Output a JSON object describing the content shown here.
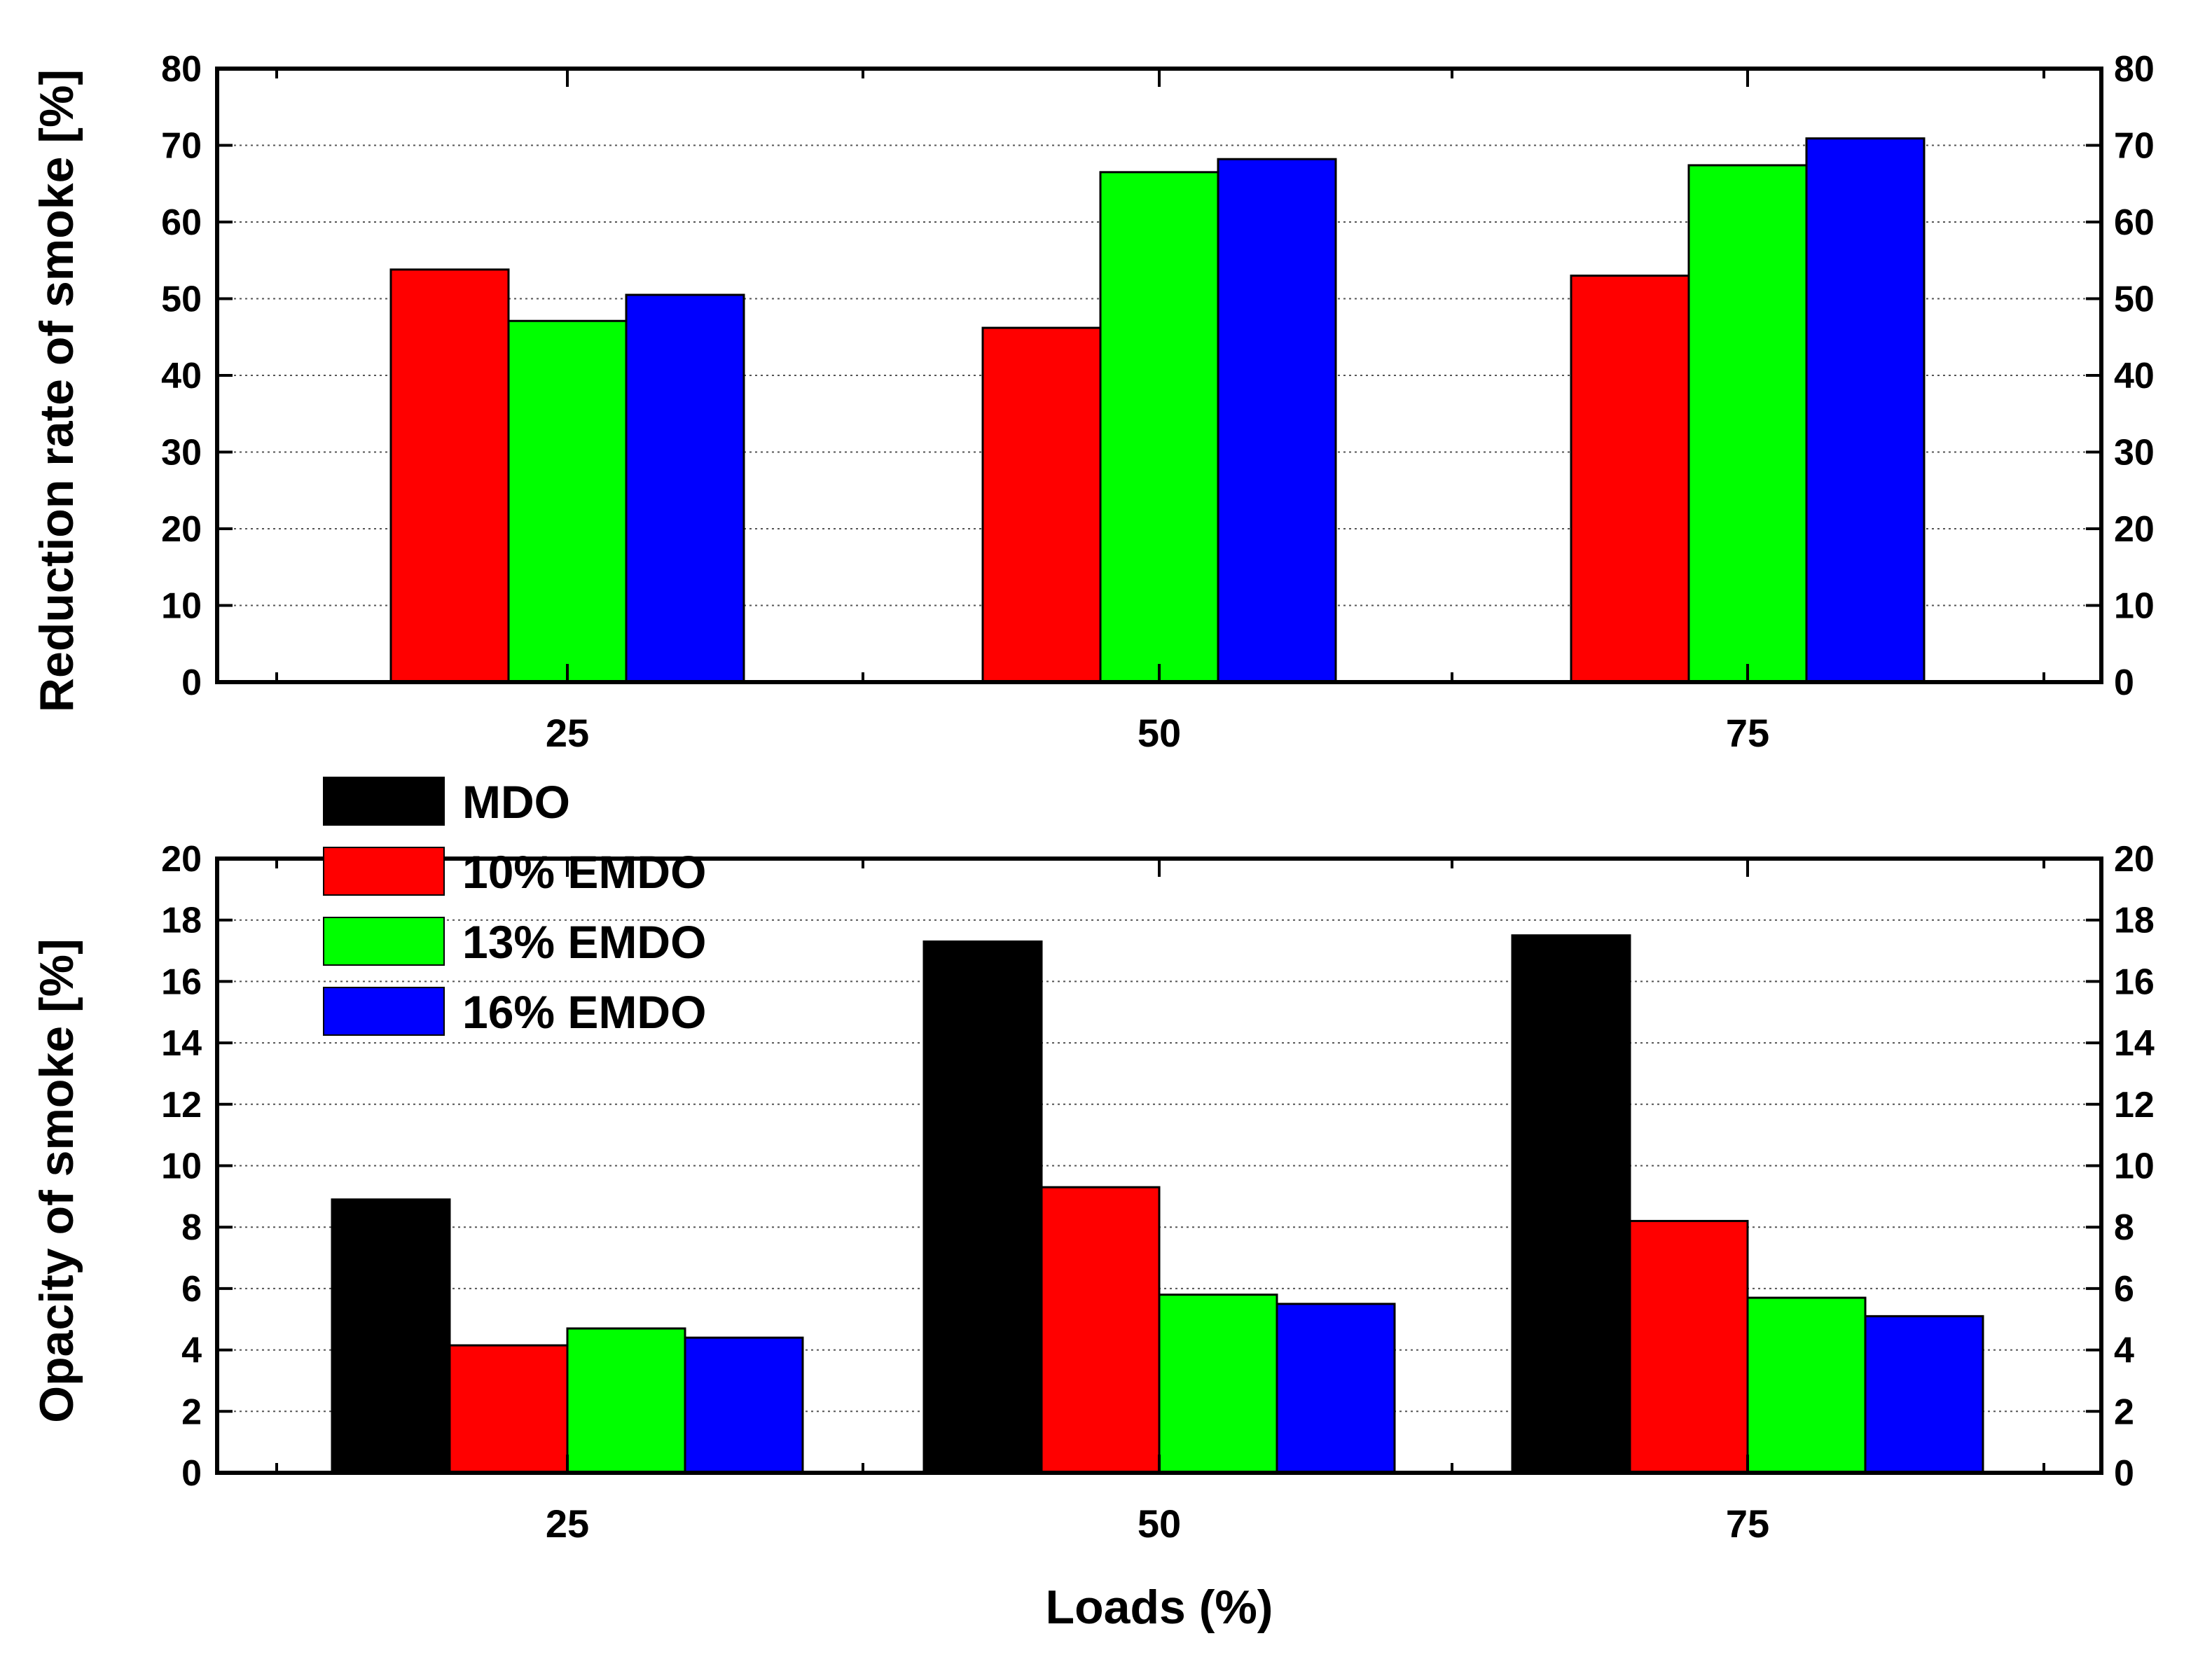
{
  "chart_data": [
    {
      "type": "bar",
      "panel": "top",
      "categories": [
        "25",
        "50",
        "75"
      ],
      "ylabel": "Reduction rate of smoke [%]",
      "xlabel": "",
      "ylim": [
        0,
        80
      ],
      "yticks": [
        "0",
        "10",
        "20",
        "30",
        "40",
        "50",
        "60",
        "70",
        "80"
      ],
      "grid": true,
      "series": [
        {
          "name": "10% EMDO",
          "color": "#ff0000",
          "values": [
            53.8,
            46.2,
            53.0
          ]
        },
        {
          "name": "13% EMDO",
          "color": "#00ff00",
          "values": [
            47.1,
            66.5,
            67.4
          ]
        },
        {
          "name": "16% EMDO",
          "color": "#0000ff",
          "values": [
            50.5,
            68.2,
            70.9
          ]
        }
      ]
    },
    {
      "type": "bar",
      "panel": "bottom",
      "categories": [
        "25",
        "50",
        "75"
      ],
      "ylabel": "Opacity of smoke [%]",
      "xlabel": "Loads (%)",
      "ylim": [
        0,
        20
      ],
      "yticks": [
        "0",
        "2",
        "4",
        "6",
        "8",
        "10",
        "12",
        "14",
        "16",
        "18",
        "20"
      ],
      "grid": true,
      "series": [
        {
          "name": "MDO",
          "color": "#000000",
          "values": [
            8.9,
            17.3,
            17.5
          ]
        },
        {
          "name": "10% EMDO",
          "color": "#ff0000",
          "values": [
            4.15,
            9.3,
            8.2
          ]
        },
        {
          "name": "13% EMDO",
          "color": "#00ff00",
          "values": [
            4.7,
            5.8,
            5.7
          ]
        },
        {
          "name": "16% EMDO",
          "color": "#0000ff",
          "values": [
            4.4,
            5.5,
            5.1
          ]
        }
      ]
    }
  ],
  "legend": {
    "placement": "bottom-panel top-left",
    "items": [
      {
        "label": "MDO",
        "color": "#000000"
      },
      {
        "label": "10% EMDO",
        "color": "#ff0000"
      },
      {
        "label": "13% EMDO",
        "color": "#00ff00"
      },
      {
        "label": "16% EMDO",
        "color": "#0000ff"
      }
    ]
  }
}
